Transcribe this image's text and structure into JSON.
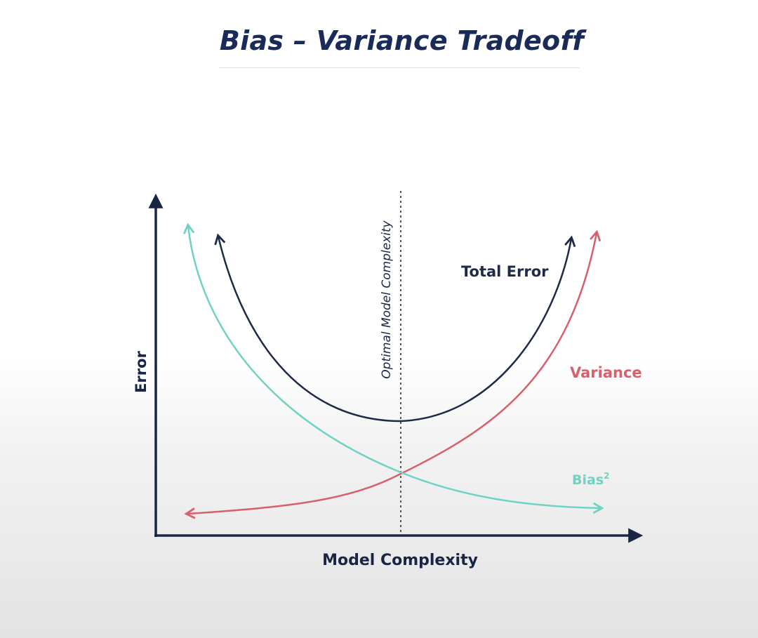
{
  "title": "Bias – Variance Tradeoff",
  "labels": {
    "x_axis": "Model Complexity",
    "y_axis": "Error",
    "optimal_line": "Optimal Model Complexity",
    "total_error": "Total Error",
    "variance": "Variance",
    "bias": "Bias",
    "bias_superscript": "2"
  },
  "colors": {
    "title": "#1b2b57",
    "axis": "#1a2546",
    "total_error": "#1f2a48",
    "variance": "#d6606b",
    "bias": "#6fd3c4",
    "optimal_line": "#555555"
  }
}
